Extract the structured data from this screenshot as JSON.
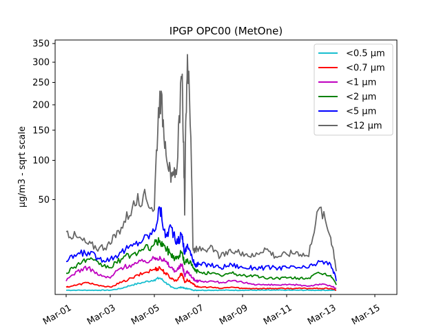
{
  "chart_data": {
    "type": "line",
    "title": "IPGP OPC00 (MetOne)",
    "xlabel": "",
    "ylabel": "µg/m3 - sqrt scale",
    "y_scale": "sqrt",
    "ylim": [
      0,
      360
    ],
    "xlim": [
      "2021-02-28T12:00",
      "2021-03-16T00:00"
    ],
    "x_ticks": [
      "Mar-01",
      "Mar-03",
      "Mar-05",
      "Mar-07",
      "Mar-09",
      "Mar-11",
      "Mar-13",
      "Mar-15"
    ],
    "y_ticks": [
      50,
      100,
      150,
      200,
      250,
      300,
      350
    ],
    "grid": false,
    "legend": "top-right",
    "x": [
      "2021-03-01T00:00",
      "2021-03-01T12:00",
      "2021-03-02T00:00",
      "2021-03-02T12:00",
      "2021-03-03T00:00",
      "2021-03-03T12:00",
      "2021-03-04T00:00",
      "2021-03-04T12:00",
      "2021-03-05T00:00",
      "2021-03-05T06:00",
      "2021-03-05T12:00",
      "2021-03-05T18:00",
      "2021-03-06T00:00",
      "2021-03-06T06:00",
      "2021-03-06T09:00",
      "2021-03-06T12:00",
      "2021-03-06T18:00",
      "2021-03-06T21:00",
      "2021-03-07T00:00",
      "2021-03-07T12:00",
      "2021-03-08T00:00",
      "2021-03-08T12:00",
      "2021-03-09T00:00",
      "2021-03-09T12:00",
      "2021-03-10T00:00",
      "2021-03-10T12:00",
      "2021-03-11T00:00",
      "2021-03-11T12:00",
      "2021-03-12T00:00",
      "2021-03-12T12:00",
      "2021-03-13T00:00",
      "2021-03-13T06:00"
    ],
    "series": [
      {
        "name": "<0.5 µm",
        "color": "#17becf",
        "values": [
          0.1,
          0.1,
          0.1,
          0.1,
          0.1,
          0.2,
          0.5,
          0.8,
          1.2,
          1.5,
          0.8,
          0.3,
          0.2,
          0.3,
          0.2,
          0.2,
          0.1,
          0.1,
          0.1,
          0.1,
          0.1,
          0.1,
          0.1,
          0.1,
          0.1,
          0.1,
          0.1,
          0.1,
          0.1,
          0.1,
          0.1,
          0.1
        ]
      },
      {
        "name": "<0.7 µm",
        "color": "#ff0000",
        "values": [
          0.3,
          0.5,
          0.8,
          0.4,
          0.3,
          0.8,
          1.5,
          2.5,
          3.5,
          4,
          2.5,
          1.5,
          1,
          2.5,
          0.8,
          1.2,
          0.6,
          0.4,
          0.3,
          0.3,
          0.2,
          0.3,
          0.2,
          0.2,
          0.2,
          0.2,
          0.2,
          0.2,
          0.2,
          0.2,
          0.2,
          0.1
        ]
      },
      {
        "name": "<1 µm",
        "color": "#bf00bf",
        "values": [
          1,
          3,
          4,
          2,
          1.5,
          4,
          5,
          6,
          7,
          8,
          6,
          4,
          3,
          5,
          2,
          3,
          1.5,
          1,
          1,
          1,
          0.8,
          1,
          0.8,
          0.6,
          0.5,
          0.5,
          0.5,
          0.5,
          0.4,
          0.6,
          0.4,
          0.2
        ]
      },
      {
        "name": "<2 µm",
        "color": "#008000",
        "values": [
          2.5,
          5,
          7,
          5,
          4,
          7,
          9,
          11,
          14,
          16,
          12,
          9,
          7,
          10,
          5,
          7,
          4,
          3,
          3,
          2.5,
          2,
          2.5,
          2,
          2,
          1.5,
          1.5,
          1.5,
          1.5,
          1.5,
          2.5,
          2,
          0.5
        ]
      },
      {
        "name": "<5 µm",
        "color": "#0000ff",
        "values": [
          6,
          9,
          10,
          7,
          7,
          10,
          13,
          17,
          22,
          42,
          18,
          26,
          14,
          20,
          9,
          14,
          6,
          5,
          5,
          5,
          4,
          5,
          4,
          4,
          4,
          4,
          4,
          4,
          4,
          6,
          5,
          1
        ]
      },
      {
        "name": "<12 µm",
        "color": "#666666",
        "values": [
          22,
          18,
          14,
          12,
          14,
          25,
          42,
          55,
          40,
          230,
          130,
          70,
          80,
          260,
          35,
          320,
          12,
          11,
          11,
          12,
          8,
          10,
          10,
          8,
          12,
          8,
          9,
          10,
          8,
          42,
          18,
          3
        ]
      }
    ]
  }
}
